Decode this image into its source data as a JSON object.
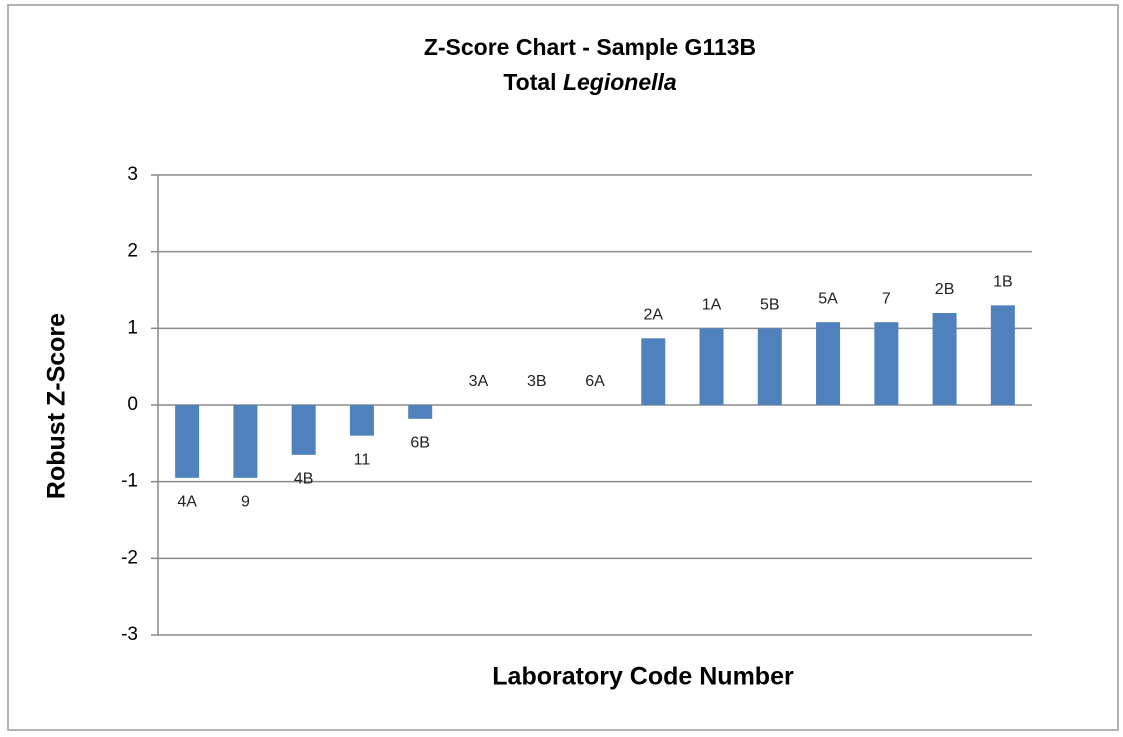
{
  "chart_data": {
    "type": "bar",
    "title": "Z-Score Chart - Sample G113B",
    "subtitle": "Total Legionella",
    "x_label": "Laboratory Code Number",
    "y_label": "Robust Z-Score",
    "categories": [
      "4A",
      "9",
      "4B",
      "11",
      "6B",
      "3A",
      "3B",
      "6A",
      "2A",
      "1A",
      "5B",
      "5A",
      "7",
      "2B",
      "1B"
    ],
    "values": [
      -0.95,
      -0.95,
      -0.65,
      -0.4,
      -0.18,
      0,
      0,
      0,
      0.87,
      1.0,
      1.0,
      1.08,
      1.08,
      1.2,
      1.3
    ],
    "color": "#4f81bd",
    "ylim": [
      -3,
      3
    ],
    "yticks": [
      -3,
      -2,
      -1,
      0,
      1,
      2,
      3
    ],
    "grid": true
  }
}
